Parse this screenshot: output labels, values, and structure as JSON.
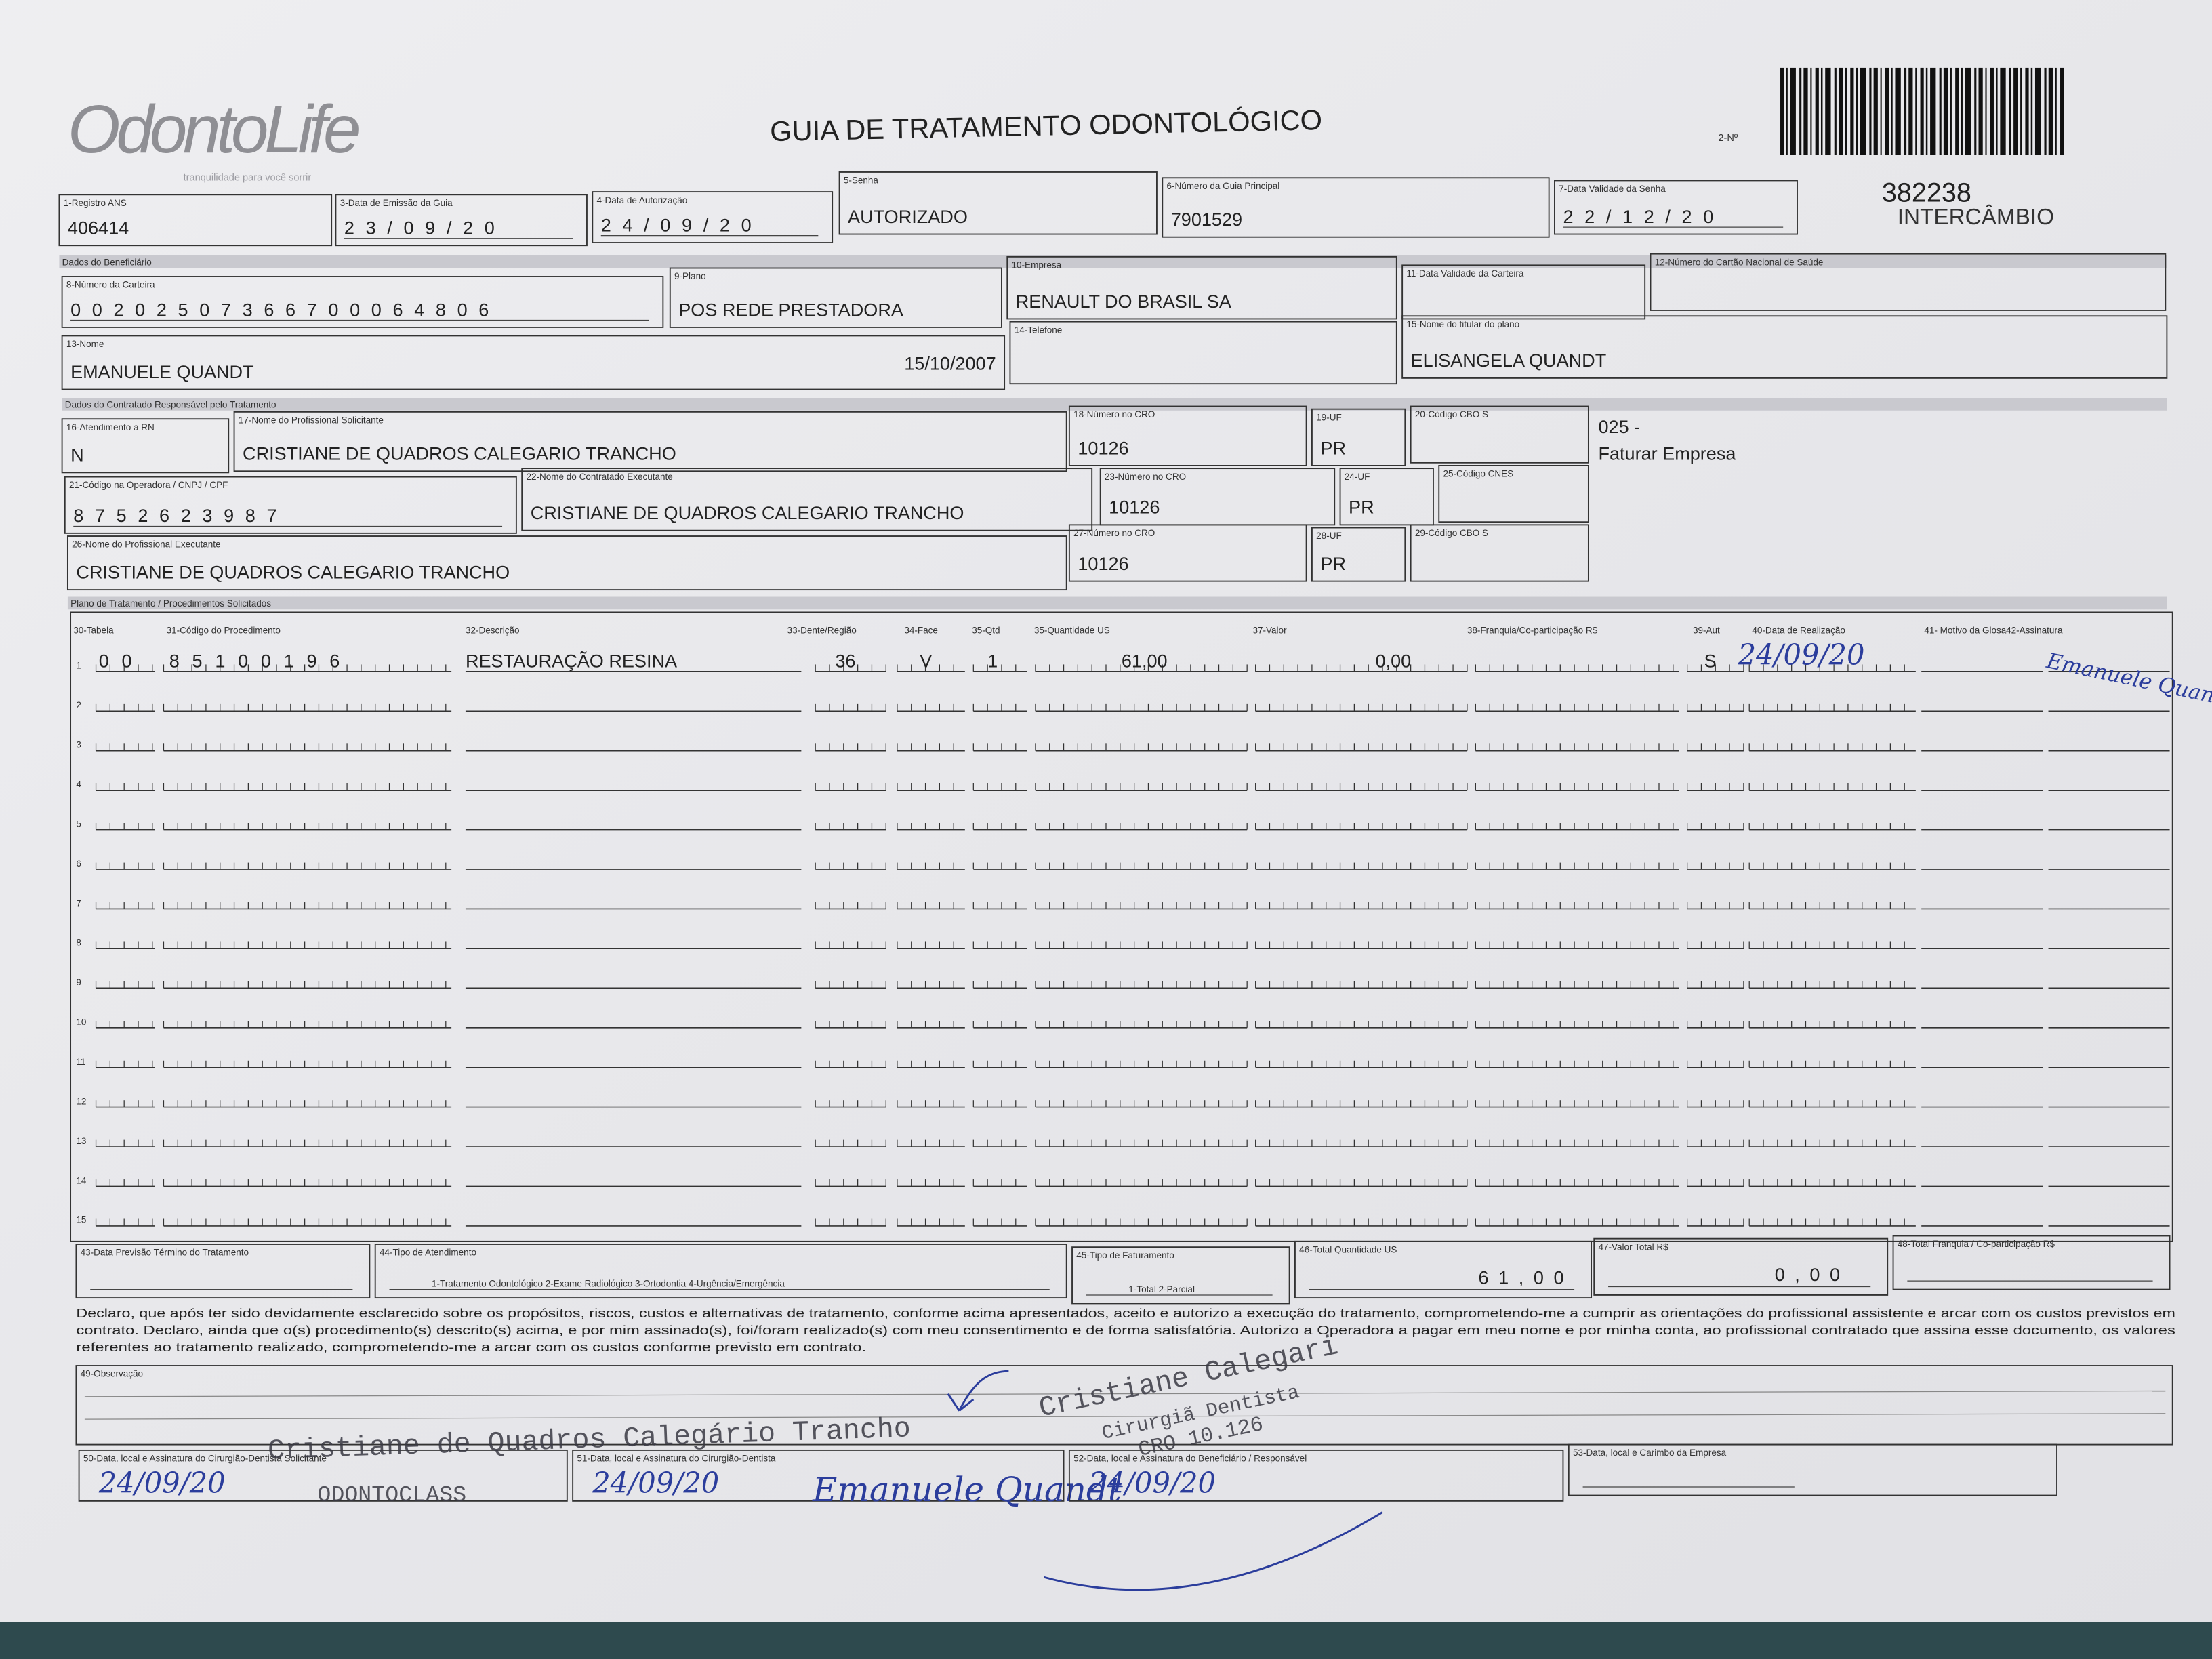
{
  "header": {
    "logo": "OdontoLife",
    "tagline": "tranquilidade para você sorrir",
    "title": "GUIA DE TRATAMENTO ODONTOLÓGICO",
    "number_label": "2-Nº",
    "number": "382238",
    "number_note": "INTERCÂMBIO"
  },
  "sections": [
    "Dados do Beneficiário",
    "Dados do Contratado Responsável pelo Tratamento",
    "Plano de Tratamento / Procedimentos Solicitados"
  ],
  "fields": [
    {
      "label": "1-Registro ANS",
      "value": "406414"
    },
    {
      "label": "3-Data de Emissão da Guia",
      "value": "23/09/20"
    },
    {
      "label": "4-Data de Autorização",
      "value": "24/09/20"
    },
    {
      "label": "5-Senha",
      "value": "AUTORIZADO"
    },
    {
      "label": "6-Número da Guia Principal",
      "value": "7901529"
    },
    {
      "label": "7-Data Validade da Senha",
      "value": "22/12/20"
    },
    {
      "label": "8-Número da Carteira",
      "value": "00202507366700064806"
    },
    {
      "label": "9-Plano",
      "value": "POS REDE PRESTADORA"
    },
    {
      "label": "10-Empresa",
      "value": "RENAULT DO BRASIL SA"
    },
    {
      "label": "11-Data Validade da Carteira"
    },
    {
      "label": "12-Número do Cartão Nacional de Saúde"
    },
    {
      "label": "13-Nome",
      "value": "EMANUELE QUANDT",
      "extra": "15/10/2007"
    },
    {
      "label": "14-Telefone"
    },
    {
      "label": "15-Nome do titular do plano",
      "value": "ELISANGELA QUANDT"
    },
    {
      "label": "16-Atendimento a RN",
      "value": "N"
    },
    {
      "label": "17-Nome do Profissional Solicitante",
      "value": "CRISTIANE DE QUADROS CALEGARIO TRANCHO"
    },
    {
      "label": "18-Número no CRO",
      "value": "10126"
    },
    {
      "label": "19-UF",
      "value": "PR"
    },
    {
      "label": "20-Código CBO S"
    },
    {
      "label": "21-Código na Operadora / CNPJ / CPF",
      "value": "8752623987"
    },
    {
      "label": "22-Nome do Contratado Executante",
      "value": "CRISTIANE DE QUADROS CALEGARIO TRANCHO"
    },
    {
      "label": "23-Número no CRO",
      "value": "10126"
    },
    {
      "label": "24-UF",
      "value": "PR"
    },
    {
      "label": "25-Código CNES"
    },
    {
      "label": "26-Nome do Profissional Executante",
      "value": "CRISTIANE DE QUADROS CALEGARIO TRANCHO"
    },
    {
      "label": "27-Número no CRO",
      "value": "10126"
    },
    {
      "label": "28-UF",
      "value": "PR"
    },
    {
      "label": "29-Código CBO S"
    }
  ],
  "cbo_note": [
    "025 -",
    "Faturar Empresa"
  ],
  "procedure_table": {
    "headers": [
      "30-Tabela",
      "31-Código do Procedimento",
      "32-Descrição",
      "33-Dente/Região",
      "34-Face",
      "35-Qtd",
      "35-Quantidade US",
      "37-Valor",
      "38-Franquia/Co-participação R$",
      "39-Aut",
      "40-Data de Realização",
      "41- Motivo da Glosa",
      "42-Assinatura"
    ],
    "row_numbers": [
      "1",
      "2",
      "3",
      "4",
      "5",
      "6",
      "7",
      "8",
      "9",
      "10",
      "11",
      "12",
      "13",
      "14",
      "15"
    ],
    "rows": [
      {
        "tabela": "00",
        "codigo": "85100196",
        "descricao": "RESTAURAÇÃO RESINA",
        "dente": "36",
        "face": "V",
        "qtd": "1",
        "quantidade_us": "61,00",
        "valor": "0,00",
        "aut": "S",
        "data": "24/09/20",
        "assinatura": "Emanuele Quandt"
      }
    ]
  },
  "footer_fields": [
    {
      "label": "43-Data Previsão Término do Tratamento"
    },
    {
      "label": "44-Tipo de Atendimento",
      "options": "1-Tratamento Odontológico  2-Exame Radiológico  3-Ortodontia  4-Urgência/Emergência"
    },
    {
      "label": "45-Tipo de Faturamento",
      "options": "1-Total  2-Parcial"
    },
    {
      "label": "46-Total Quantidade US",
      "value": "61,00"
    },
    {
      "label": "47-Valor Total R$",
      "value": "0,00"
    },
    {
      "label": "48-Total Franquia / Co-participação R$"
    }
  ],
  "declaration": [
    "Declaro, que após ter sido devidamente esclarecido sobre os propósitos, riscos, custos e alternativas de tratamento, conforme acima apresentados, aceito e autorizo a execução do tratamento, comprometendo-me a cumprir as orientações do profissional assistente e arcar com os custos previstos em",
    "contrato. Declaro, ainda que o(s) procedimento(s) descrito(s) acima, e por mim assinado(s), foi/foram realizado(s) com meu consentimento e de forma satisfatória. Autorizo a Operadora a pagar em meu nome e por minha conta, ao profissional contratado que assina esse documento, os valores",
    "referentes ao tratamento realizado, comprometendo-me a arcar com os custos conforme previsto em contrato."
  ],
  "observation_label": "49-Observação",
  "signatures": [
    {
      "label": "50-Data, local e Assinatura do Cirurgião-Dentista Solicitante",
      "handwriting": "24/09/20"
    },
    {
      "label": "51-Data, local e Assinatura do Cirurgião-Dentista",
      "handwriting": "24/09/20",
      "signature": "Emanuele Quandt"
    },
    {
      "label": "52-Data, local e Assinatura do Beneficiário / Responsável",
      "handwriting": "24/09/20"
    },
    {
      "label": "53-Data, local e Carimbo da Empresa"
    }
  ],
  "stamps": [
    "Cristiane de Quadros Calegário Trancho",
    "ODONTOCLASS",
    "Cristiane Calegari",
    "Cirurgiã Dentista",
    "CRO 10.126"
  ]
}
